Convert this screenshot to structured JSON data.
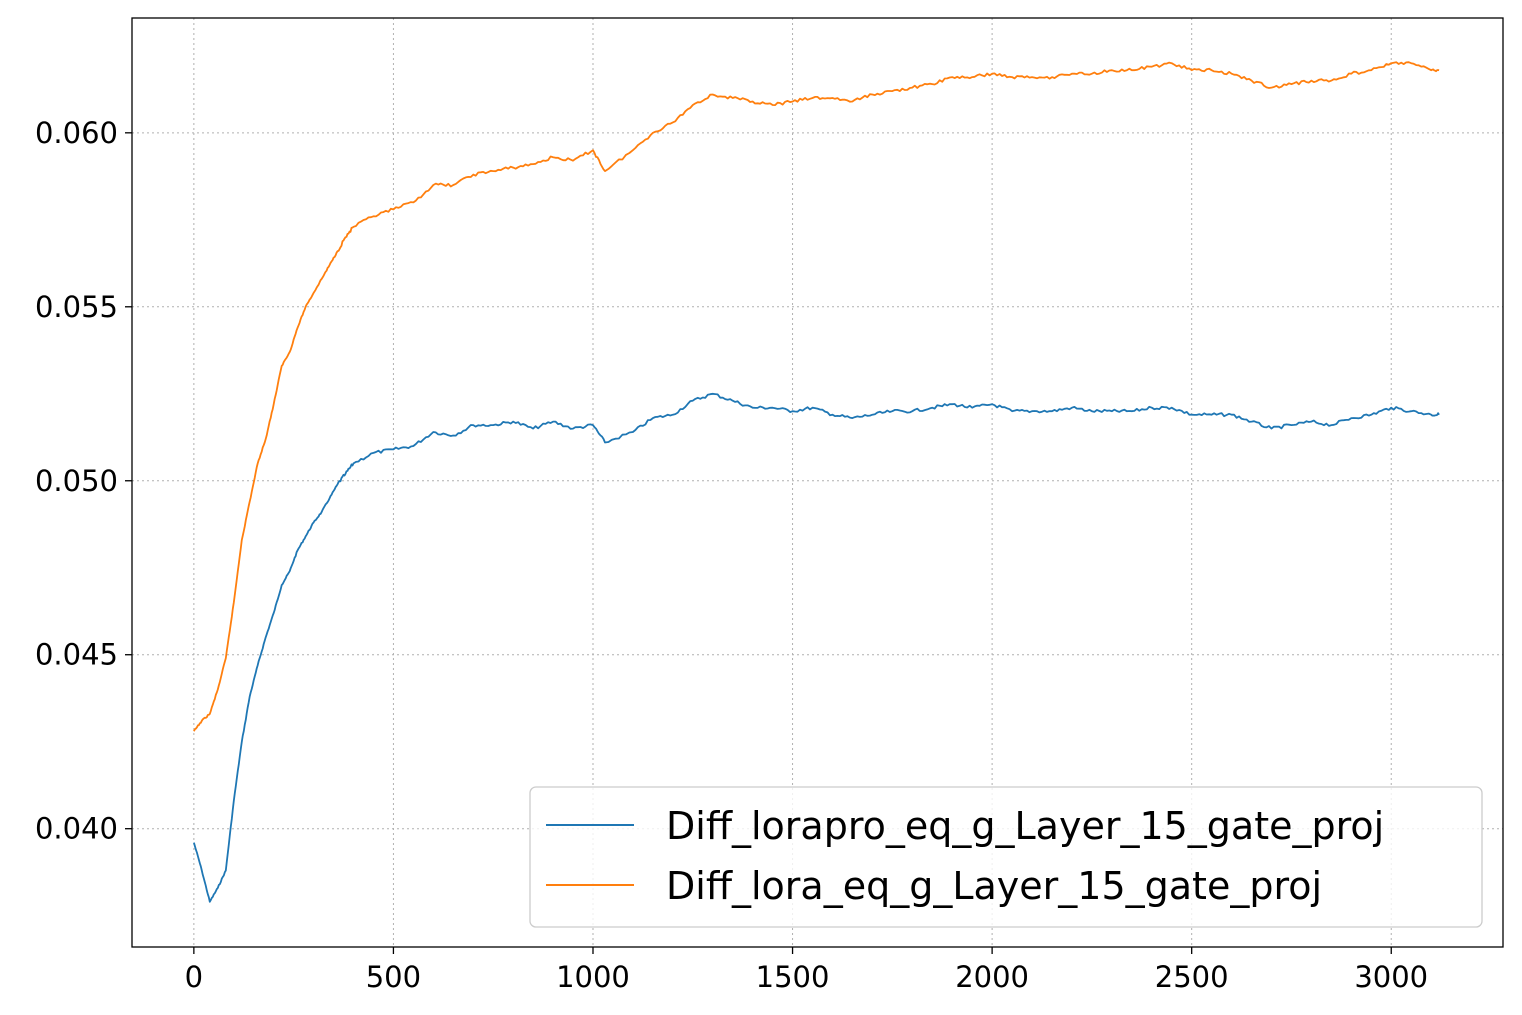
{
  "chart_data": {
    "type": "line",
    "title": "",
    "xlabel": "",
    "ylabel": "",
    "xlim": [
      -155,
      3280
    ],
    "ylim": [
      0.0366,
      0.0633
    ],
    "xticks": [
      0,
      500,
      1000,
      1500,
      2000,
      2500,
      3000
    ],
    "xtick_labels": [
      "0",
      "500",
      "1000",
      "1500",
      "2000",
      "2500",
      "3000"
    ],
    "yticks": [
      0.04,
      0.045,
      0.05,
      0.055,
      0.06
    ],
    "ytick_labels": [
      "0.040",
      "0.045",
      "0.050",
      "0.055",
      "0.060"
    ],
    "grid": true,
    "legend_position": "lower-right",
    "series": [
      {
        "name": "Diff_lorapro_eq_g_Layer_15_gate_proj",
        "color": "#1f77b4",
        "points": [
          [
            0,
            0.0396
          ],
          [
            20,
            0.0388
          ],
          [
            40,
            0.0379
          ],
          [
            60,
            0.0383
          ],
          [
            80,
            0.0388
          ],
          [
            100,
            0.0408
          ],
          [
            120,
            0.0425
          ],
          [
            140,
            0.0438
          ],
          [
            160,
            0.0447
          ],
          [
            180,
            0.0455
          ],
          [
            200,
            0.0462
          ],
          [
            220,
            0.047
          ],
          [
            240,
            0.0474
          ],
          [
            260,
            0.048
          ],
          [
            280,
            0.0484
          ],
          [
            300,
            0.0488
          ],
          [
            320,
            0.0491
          ],
          [
            340,
            0.0495
          ],
          [
            360,
            0.0499
          ],
          [
            380,
            0.0502
          ],
          [
            400,
            0.0505
          ],
          [
            450,
            0.0508
          ],
          [
            500,
            0.0509
          ],
          [
            550,
            0.051
          ],
          [
            600,
            0.0514
          ],
          [
            650,
            0.0513
          ],
          [
            700,
            0.0516
          ],
          [
            750,
            0.0516
          ],
          [
            800,
            0.0517
          ],
          [
            850,
            0.0515
          ],
          [
            900,
            0.0517
          ],
          [
            950,
            0.0515
          ],
          [
            1000,
            0.0516
          ],
          [
            1030,
            0.0511
          ],
          [
            1100,
            0.0514
          ],
          [
            1150,
            0.0518
          ],
          [
            1200,
            0.0519
          ],
          [
            1250,
            0.0523
          ],
          [
            1300,
            0.0525
          ],
          [
            1350,
            0.0523
          ],
          [
            1400,
            0.0521
          ],
          [
            1450,
            0.0521
          ],
          [
            1500,
            0.052
          ],
          [
            1550,
            0.0521
          ],
          [
            1600,
            0.0519
          ],
          [
            1650,
            0.0518
          ],
          [
            1700,
            0.0519
          ],
          [
            1750,
            0.052
          ],
          [
            1800,
            0.052
          ],
          [
            1850,
            0.0521
          ],
          [
            1900,
            0.0522
          ],
          [
            1950,
            0.0521
          ],
          [
            2000,
            0.0522
          ],
          [
            2050,
            0.052
          ],
          [
            2100,
            0.052
          ],
          [
            2150,
            0.052
          ],
          [
            2200,
            0.0521
          ],
          [
            2250,
            0.052
          ],
          [
            2300,
            0.052
          ],
          [
            2350,
            0.052
          ],
          [
            2400,
            0.0521
          ],
          [
            2450,
            0.0521
          ],
          [
            2500,
            0.0519
          ],
          [
            2550,
            0.0519
          ],
          [
            2600,
            0.0519
          ],
          [
            2650,
            0.0517
          ],
          [
            2700,
            0.0515
          ],
          [
            2750,
            0.0516
          ],
          [
            2800,
            0.0517
          ],
          [
            2850,
            0.0516
          ],
          [
            2900,
            0.0518
          ],
          [
            2950,
            0.0519
          ],
          [
            3000,
            0.0521
          ],
          [
            3050,
            0.052
          ],
          [
            3100,
            0.0519
          ],
          [
            3120,
            0.0519
          ]
        ]
      },
      {
        "name": "Diff_lora_eq_g_Layer_15_gate_proj",
        "color": "#ff7f0e",
        "points": [
          [
            0,
            0.0428
          ],
          [
            20,
            0.0431
          ],
          [
            40,
            0.0433
          ],
          [
            60,
            0.044
          ],
          [
            80,
            0.0449
          ],
          [
            100,
            0.0465
          ],
          [
            120,
            0.0483
          ],
          [
            140,
            0.0494
          ],
          [
            160,
            0.0505
          ],
          [
            180,
            0.0512
          ],
          [
            200,
            0.0522
          ],
          [
            220,
            0.0533
          ],
          [
            240,
            0.0537
          ],
          [
            260,
            0.0544
          ],
          [
            280,
            0.055
          ],
          [
            300,
            0.0554
          ],
          [
            320,
            0.0558
          ],
          [
            340,
            0.0562
          ],
          [
            360,
            0.0566
          ],
          [
            380,
            0.057
          ],
          [
            400,
            0.0573
          ],
          [
            450,
            0.0576
          ],
          [
            500,
            0.0578
          ],
          [
            550,
            0.058
          ],
          [
            600,
            0.0585
          ],
          [
            650,
            0.0585
          ],
          [
            700,
            0.0588
          ],
          [
            750,
            0.0589
          ],
          [
            800,
            0.059
          ],
          [
            850,
            0.0591
          ],
          [
            900,
            0.0593
          ],
          [
            950,
            0.0592
          ],
          [
            1000,
            0.0595
          ],
          [
            1030,
            0.0589
          ],
          [
            1100,
            0.0595
          ],
          [
            1150,
            0.06
          ],
          [
            1200,
            0.0603
          ],
          [
            1250,
            0.0608
          ],
          [
            1300,
            0.0611
          ],
          [
            1350,
            0.061
          ],
          [
            1400,
            0.0609
          ],
          [
            1450,
            0.0608
          ],
          [
            1500,
            0.0609
          ],
          [
            1550,
            0.061
          ],
          [
            1600,
            0.061
          ],
          [
            1650,
            0.0609
          ],
          [
            1700,
            0.0611
          ],
          [
            1750,
            0.0612
          ],
          [
            1800,
            0.0613
          ],
          [
            1850,
            0.0614
          ],
          [
            1900,
            0.0616
          ],
          [
            1950,
            0.0616
          ],
          [
            2000,
            0.0617
          ],
          [
            2050,
            0.0616
          ],
          [
            2100,
            0.0616
          ],
          [
            2150,
            0.0616
          ],
          [
            2200,
            0.0617
          ],
          [
            2250,
            0.0617
          ],
          [
            2300,
            0.0618
          ],
          [
            2350,
            0.0618
          ],
          [
            2400,
            0.0619
          ],
          [
            2450,
            0.062
          ],
          [
            2500,
            0.0618
          ],
          [
            2550,
            0.0618
          ],
          [
            2600,
            0.0617
          ],
          [
            2650,
            0.0615
          ],
          [
            2700,
            0.0613
          ],
          [
            2750,
            0.0614
          ],
          [
            2800,
            0.0615
          ],
          [
            2850,
            0.0615
          ],
          [
            2900,
            0.0617
          ],
          [
            2950,
            0.0618
          ],
          [
            3000,
            0.062
          ],
          [
            3050,
            0.062
          ],
          [
            3100,
            0.0618
          ],
          [
            3120,
            0.0618
          ]
        ]
      }
    ]
  }
}
